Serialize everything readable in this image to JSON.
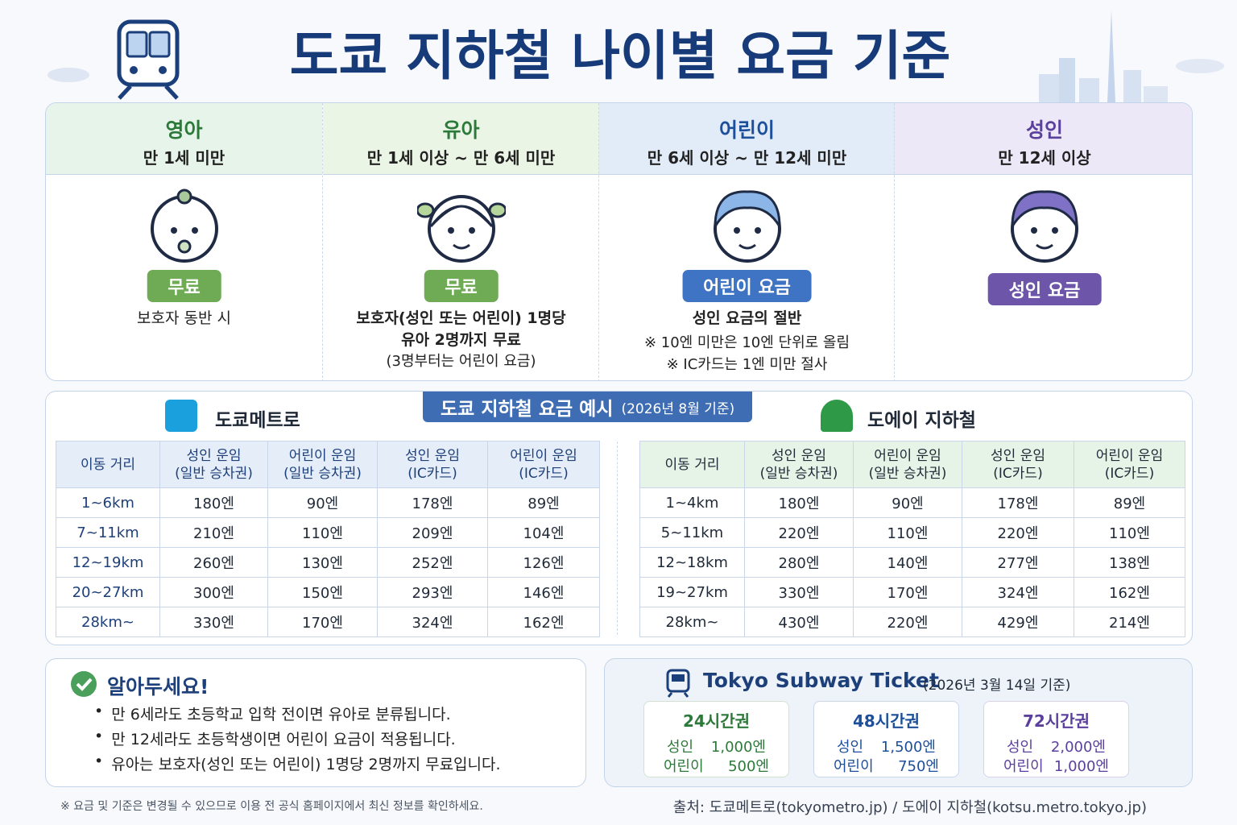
{
  "title": "도쿄 지하철 나이별 요금 기준",
  "age_groups": [
    {
      "name": "영아",
      "range": "만 1세 미만",
      "badge": "무료",
      "notes": [
        "보호자 동반 시"
      ]
    },
    {
      "name": "유아",
      "range": "만 1세 이상 ~ 만 6세 미만",
      "badge": "무료",
      "notes": [
        "보호자(성인 또는 어린이) 1명당",
        "유아 2명까지 무료",
        "(3명부터는 어린이 요금)"
      ]
    },
    {
      "name": "어린이",
      "range": "만 6세 이상 ~ 만 12세 미만",
      "badge": "어린이 요금",
      "notes": [
        "성인 요금의 절반",
        "※ 10엔 미만은 10엔 단위로 올림",
        "※ IC카드는 1엔 미만 절사"
      ]
    },
    {
      "name": "성인",
      "range": "만 12세 이상",
      "badge": "성인 요금",
      "notes": []
    }
  ],
  "fare_example": {
    "title": "도쿄 지하철 요금 예시",
    "basis": "(2026년 8월 기준)"
  },
  "tables": [
    {
      "operator": "도쿄메트로",
      "headers": [
        [
          "이동 거리"
        ],
        [
          "성인 운임",
          "(일반 승차권)"
        ],
        [
          "어린이 운임",
          "(일반 승차권)"
        ],
        [
          "성인 운임",
          "(IC카드)"
        ],
        [
          "어린이 운임",
          "(IC카드)"
        ]
      ],
      "rows": [
        [
          "1~6km",
          "180엔",
          "90엔",
          "178엔",
          "89엔"
        ],
        [
          "7~11km",
          "210엔",
          "110엔",
          "209엔",
          "104엔"
        ],
        [
          "12~19km",
          "260엔",
          "130엔",
          "252엔",
          "126엔"
        ],
        [
          "20~27km",
          "300엔",
          "150엔",
          "293엔",
          "146엔"
        ],
        [
          "28km~",
          "330엔",
          "170엔",
          "324엔",
          "162엔"
        ]
      ]
    },
    {
      "operator": "도에이 지하철",
      "headers": [
        [
          "이동 거리"
        ],
        [
          "성인 운임",
          "(일반 승차권)"
        ],
        [
          "어린이 운임",
          "(일반 승차권)"
        ],
        [
          "성인 운임",
          "(IC카드)"
        ],
        [
          "어린이 운임",
          "(IC카드)"
        ]
      ],
      "rows": [
        [
          "1~4km",
          "180엔",
          "90엔",
          "178엔",
          "89엔"
        ],
        [
          "5~11km",
          "220엔",
          "110엔",
          "220엔",
          "110엔"
        ],
        [
          "12~18km",
          "280엔",
          "140엔",
          "277엔",
          "138엔"
        ],
        [
          "19~27km",
          "330엔",
          "170엔",
          "324엔",
          "162엔"
        ],
        [
          "28km~",
          "430엔",
          "220엔",
          "429엔",
          "214엔"
        ]
      ]
    }
  ],
  "notice": {
    "title": "알아두세요!",
    "items": [
      "만 6세라도 초등학교 입학 전이면 유아로 분류됩니다.",
      "만 12세라도 초등학생이면 어린이 요금이 적용됩니다.",
      "유아는 보호자(성인 또는 어린이) 1명당 2명까지 무료입니다."
    ]
  },
  "ticket": {
    "title": "Tokyo Subway Ticket",
    "basis": "(2026년 3월 14일 기준)",
    "passes": [
      {
        "name": "24시간권",
        "adult_label": "성인",
        "adult_price": "1,000엔",
        "child_label": "어린이",
        "child_price": "500엔"
      },
      {
        "name": "48시간권",
        "adult_label": "성인",
        "adult_price": "1,500엔",
        "child_label": "어린이",
        "child_price": "750엔"
      },
      {
        "name": "72시간권",
        "adult_label": "성인",
        "adult_price": "2,000엔",
        "child_label": "어린이",
        "child_price": "1,000엔"
      }
    ]
  },
  "footer": {
    "disclaimer": "※ 요금 및 기준은 변경될 수 있으므로 이용 전 공식 홈페이지에서 최신 정보를 확인하세요.",
    "source": "출처: 도쿄메트로(tokyometro.jp) / 도에이 지하철(kotsu.metro.tokyo.jp)"
  }
}
